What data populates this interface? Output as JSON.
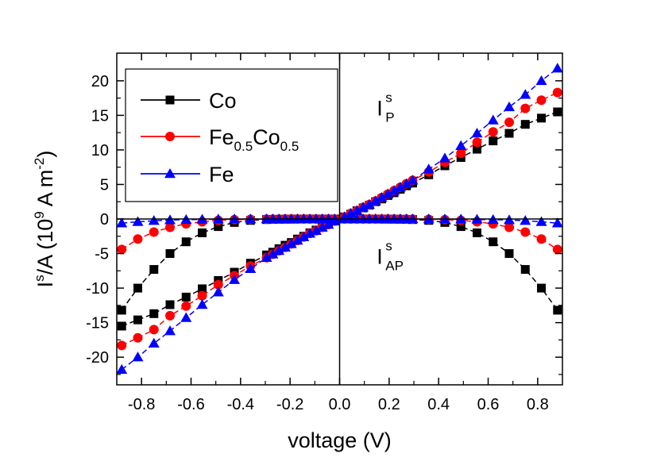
{
  "chart_data": {
    "type": "line",
    "xlabel": "voltage (V)",
    "ylabel": {
      "main": "I",
      "sup": "s",
      "mid": "/A (10",
      "exp": "9",
      "unit": " A m",
      "unit_exp": "-2",
      "end": ")"
    },
    "xlim": [
      -0.9,
      0.9
    ],
    "ylim": [
      -24,
      24
    ],
    "x_ticks": [
      "-0.8",
      "-0.6",
      "-0.4",
      "-0.2",
      "0.0",
      "0.2",
      "0.4",
      "0.6",
      "0.8"
    ],
    "x_tick_values": [
      -0.8,
      -0.6,
      -0.4,
      -0.2,
      0.0,
      0.2,
      0.4,
      0.6,
      0.8
    ],
    "y_ticks": [
      "-20",
      "-15",
      "-10",
      "-5",
      "0",
      "5",
      "10",
      "15",
      "20"
    ],
    "y_tick_values": [
      -20,
      -15,
      -10,
      -5,
      0,
      5,
      10,
      15,
      20
    ],
    "grid": false,
    "legend_position": "top-left",
    "reference_lines": [
      "x=0",
      "y=0"
    ],
    "x": [
      -0.88,
      -0.815,
      -0.75,
      -0.685,
      -0.62,
      -0.555,
      -0.49,
      -0.425,
      -0.36,
      -0.295,
      -0.27,
      -0.245,
      -0.22,
      -0.195,
      -0.17,
      -0.145,
      -0.12,
      -0.095,
      -0.07,
      -0.045,
      -0.02,
      0.02,
      0.045,
      0.07,
      0.095,
      0.12,
      0.145,
      0.17,
      0.195,
      0.22,
      0.245,
      0.27,
      0.295,
      0.36,
      0.425,
      0.49,
      0.555,
      0.62,
      0.685,
      0.75,
      0.815,
      0.88
    ],
    "series": [
      {
        "name": "Co",
        "name_parts": [
          {
            "text": "Co"
          }
        ],
        "color": "#000000",
        "marker": "square",
        "parallel": [
          -15.5,
          -14.6,
          -13.7,
          -12.4,
          -11.3,
          -10.1,
          -8.9,
          -7.7,
          -6.4,
          -5.2,
          -4.8,
          -4.3,
          -3.8,
          -3.4,
          -2.9,
          -2.5,
          -2.0,
          -1.6,
          -1.2,
          -0.7,
          -0.3,
          0.3,
          0.7,
          1.2,
          1.6,
          2.0,
          2.5,
          2.9,
          3.4,
          3.8,
          4.3,
          4.8,
          5.2,
          6.4,
          7.7,
          8.9,
          10.1,
          11.3,
          12.4,
          13.7,
          14.6,
          15.5
        ],
        "antiparallel": [
          -13.2,
          -10.0,
          -7.3,
          -5.0,
          -3.3,
          -2.0,
          -1.1,
          -0.5,
          -0.2,
          -0.08,
          -0.06,
          -0.04,
          -0.03,
          -0.02,
          -0.01,
          0,
          0,
          0,
          0,
          0,
          0,
          0,
          0,
          0,
          0,
          0,
          0,
          -0.01,
          -0.02,
          -0.03,
          -0.04,
          -0.06,
          -0.08,
          -0.2,
          -0.5,
          -1.1,
          -2.0,
          -3.3,
          -5.0,
          -7.3,
          -10.0,
          -13.2
        ]
      },
      {
        "name": "Fe0.5Co0.5",
        "name_parts": [
          {
            "text": "Fe"
          },
          {
            "text": "0.5",
            "sub": true
          },
          {
            "text": "Co"
          },
          {
            "text": "0.5",
            "sub": true
          }
        ],
        "color": "#ff0000",
        "marker": "circle",
        "parallel": [
          -18.3,
          -17.2,
          -16.0,
          -14.0,
          -12.6,
          -11.1,
          -9.5,
          -8.2,
          -6.8,
          -5.6,
          -5.1,
          -4.6,
          -4.1,
          -3.6,
          -3.1,
          -2.6,
          -2.1,
          -1.7,
          -1.2,
          -0.8,
          -0.3,
          0.3,
          0.8,
          1.2,
          1.7,
          2.1,
          2.6,
          3.1,
          3.6,
          4.1,
          4.6,
          5.1,
          5.6,
          6.8,
          8.2,
          9.5,
          11.1,
          12.6,
          14.0,
          16.0,
          17.2,
          18.3
        ],
        "antiparallel": [
          -4.4,
          -2.9,
          -1.9,
          -1.2,
          -0.7,
          -0.4,
          -0.2,
          -0.1,
          -0.05,
          -0.02,
          -0.02,
          -0.01,
          0,
          0,
          0,
          0,
          0,
          0,
          0,
          0,
          0,
          0,
          0,
          0,
          0,
          0,
          0,
          0,
          0,
          0,
          -0.01,
          -0.02,
          -0.02,
          -0.05,
          -0.1,
          -0.2,
          -0.4,
          -0.7,
          -1.2,
          -1.9,
          -2.9,
          -4.4
        ]
      },
      {
        "name": "Fe",
        "name_parts": [
          {
            "text": "Fe"
          }
        ],
        "color": "#0000ff",
        "marker": "triangle",
        "parallel": [
          -21.8,
          -20.0,
          -18.0,
          -16.2,
          -14.3,
          -12.4,
          -10.6,
          -8.8,
          -7.2,
          -5.6,
          -5.1,
          -4.6,
          -4.1,
          -3.6,
          -3.1,
          -2.6,
          -2.1,
          -1.7,
          -1.2,
          -0.8,
          -0.3,
          0.3,
          0.8,
          1.2,
          1.7,
          2.1,
          2.6,
          3.1,
          3.6,
          4.1,
          4.6,
          5.1,
          5.6,
          7.2,
          8.8,
          10.6,
          12.4,
          14.3,
          16.2,
          18.0,
          20.0,
          21.8
        ],
        "antiparallel": [
          -0.6,
          -0.4,
          -0.25,
          -0.15,
          -0.1,
          -0.06,
          -0.03,
          -0.02,
          -0.01,
          0,
          0,
          0,
          0,
          0,
          0,
          0,
          0,
          0,
          0,
          0,
          0,
          0,
          0,
          0,
          0,
          0,
          0,
          0,
          0,
          0,
          0,
          0,
          0,
          -0.01,
          -0.02,
          -0.03,
          -0.06,
          -0.1,
          -0.15,
          -0.25,
          -0.4,
          -0.6
        ]
      }
    ],
    "annotations": [
      {
        "main": "I",
        "sup": "s",
        "sub": "P",
        "x": 0.15,
        "y": 15
      },
      {
        "main": "I",
        "sup": "s",
        "sub": "AP",
        "x": 0.15,
        "y": -6.5
      }
    ]
  }
}
